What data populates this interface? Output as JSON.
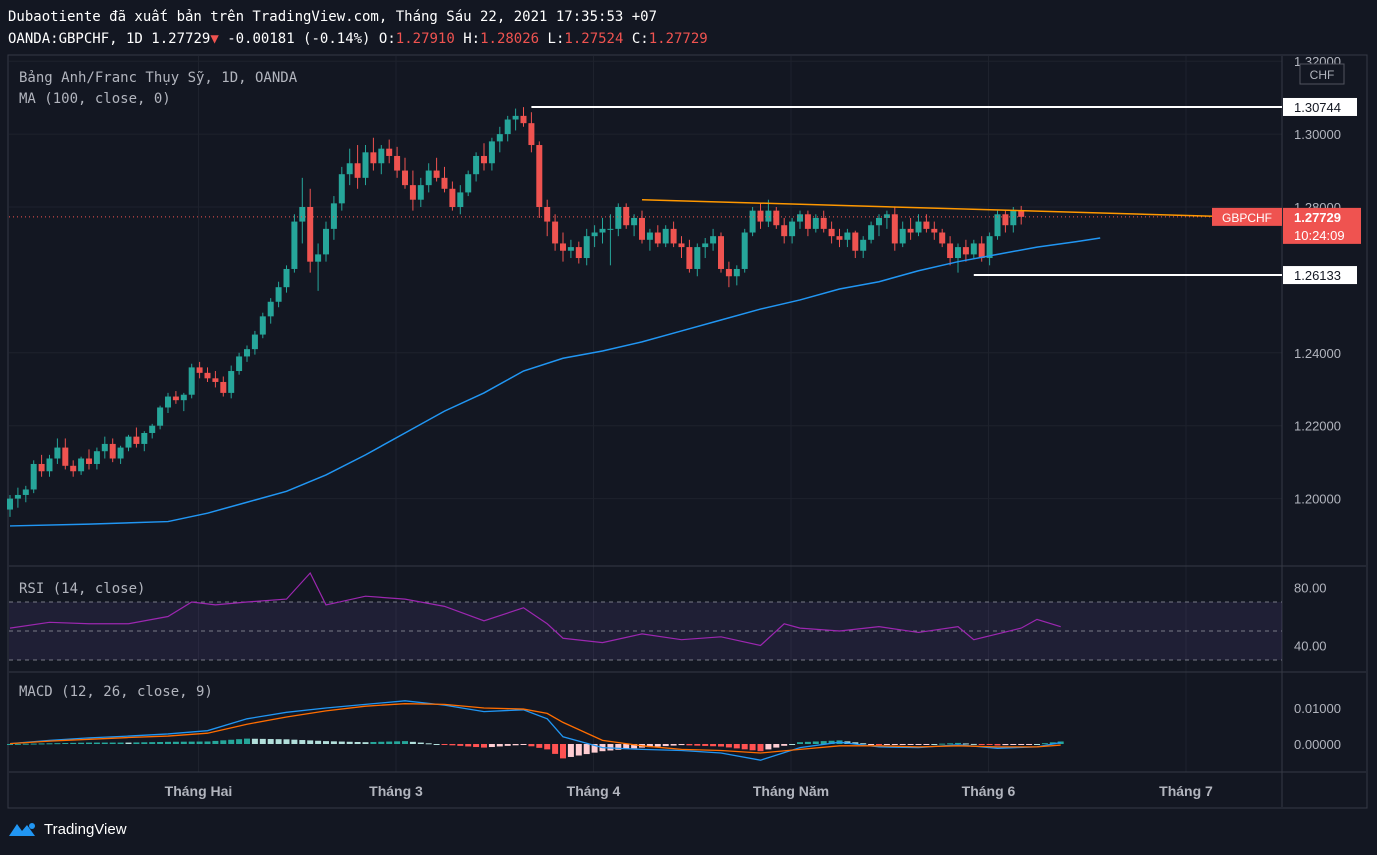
{
  "header": {
    "publish_line": "Dubaotiente đã xuất bản trên TradingView.com, Tháng Sáu 22, 2021 17:35:53 +07",
    "symbol": "OANDA:GBPCHF, 1D",
    "last": "1.27729",
    "arrow": "▼",
    "change": "-0.00181 (-0.14%)",
    "o_label": "O:",
    "o_value": "1.27910",
    "h_label": "H:",
    "h_value": "1.28026",
    "l_label": "L:",
    "l_value": "1.27524",
    "c_label": "C:",
    "c_value": "1.27729"
  },
  "main_pane": {
    "title": "Bảng Anh/Franc Thụy Sỹ, 1D, OANDA",
    "ma_label": "MA (100, close, 0)",
    "currency": "CHF",
    "symbol_tag": "GBPCHF",
    "price_tag": "1.27729",
    "countdown": "10:24:09",
    "level_high": "1.30744",
    "level_low": "1.26133"
  },
  "rsi_pane": {
    "title": "RSI (14, close)"
  },
  "macd_pane": {
    "title": "MACD (12, 26, close, 9)"
  },
  "footer": {
    "logo_text": "TradingView"
  },
  "colors": {
    "background": "#131722",
    "up": "#26a69a",
    "down": "#ef5350",
    "ma": "#2196f3",
    "rsi": "#9c27b0",
    "macd": "#2196f3",
    "signal": "#ff6d00",
    "trendline": "#ff9800",
    "level": "#ffffff"
  },
  "chart_data": [
    {
      "type": "candlestick",
      "title": "Bảng Anh/Franc Thụy Sỹ, 1D, OANDA",
      "ylim": [
        1.18,
        1.32
      ],
      "y_ticks": [
        "1.32000",
        "1.30000",
        "1.28000",
        "1.24000",
        "1.22000",
        "1.20000"
      ],
      "x_labels": [
        "Tháng Hai",
        "Tháng 3",
        "Tháng 4",
        "Tháng Năm",
        "Tháng 6",
        "Tháng 7"
      ],
      "x_label_days": [
        25,
        50,
        75,
        100,
        125,
        150
      ],
      "ohlc": [
        [
          1.197,
          1.201,
          1.195,
          1.2
        ],
        [
          1.2,
          1.203,
          1.1975,
          1.201
        ],
        [
          1.201,
          1.2035,
          1.199,
          1.2025
        ],
        [
          1.2025,
          1.2105,
          1.2015,
          1.2095
        ],
        [
          1.2095,
          1.212,
          1.206,
          1.2075
        ],
        [
          1.2075,
          1.212,
          1.206,
          1.211
        ],
        [
          1.211,
          1.2165,
          1.2095,
          1.214
        ],
        [
          1.214,
          1.2165,
          1.208,
          1.209
        ],
        [
          1.209,
          1.2105,
          1.206,
          1.2075
        ],
        [
          1.2075,
          1.2115,
          1.2065,
          1.211
        ],
        [
          1.211,
          1.2135,
          1.208,
          1.2095
        ],
        [
          1.2095,
          1.214,
          1.208,
          1.213
        ],
        [
          1.213,
          1.217,
          1.211,
          1.215
        ],
        [
          1.215,
          1.2165,
          1.21,
          1.211
        ],
        [
          1.211,
          1.2145,
          1.2095,
          1.214
        ],
        [
          1.214,
          1.2175,
          1.213,
          1.217
        ],
        [
          1.217,
          1.2195,
          1.214,
          1.215
        ],
        [
          1.215,
          1.2185,
          1.213,
          1.218
        ],
        [
          1.218,
          1.2205,
          1.2165,
          1.22
        ],
        [
          1.22,
          1.2255,
          1.219,
          1.225
        ],
        [
          1.225,
          1.229,
          1.2235,
          1.228
        ],
        [
          1.228,
          1.2295,
          1.226,
          1.227
        ],
        [
          1.227,
          1.229,
          1.224,
          1.2285
        ],
        [
          1.2285,
          1.237,
          1.2275,
          1.236
        ],
        [
          1.236,
          1.2375,
          1.233,
          1.2345
        ],
        [
          1.2345,
          1.236,
          1.232,
          1.233
        ],
        [
          1.233,
          1.235,
          1.2305,
          1.232
        ],
        [
          1.232,
          1.2335,
          1.228,
          1.229
        ],
        [
          1.229,
          1.2365,
          1.2275,
          1.235
        ],
        [
          1.235,
          1.24,
          1.234,
          1.239
        ],
        [
          1.239,
          1.242,
          1.2375,
          1.241
        ],
        [
          1.241,
          1.246,
          1.2395,
          1.245
        ],
        [
          1.245,
          1.251,
          1.244,
          1.25
        ],
        [
          1.25,
          1.255,
          1.248,
          1.254
        ],
        [
          1.254,
          1.2595,
          1.2525,
          1.258
        ],
        [
          1.258,
          1.264,
          1.2565,
          1.263
        ],
        [
          1.263,
          1.278,
          1.262,
          1.276
        ],
        [
          1.276,
          1.288,
          1.27,
          1.28
        ],
        [
          1.28,
          1.285,
          1.262,
          1.265
        ],
        [
          1.265,
          1.27,
          1.257,
          1.267
        ],
        [
          1.267,
          1.276,
          1.265,
          1.274
        ],
        [
          1.274,
          1.283,
          1.271,
          1.281
        ],
        [
          1.281,
          1.291,
          1.279,
          1.289
        ],
        [
          1.289,
          1.296,
          1.286,
          1.292
        ],
        [
          1.292,
          1.297,
          1.285,
          1.288
        ],
        [
          1.288,
          1.297,
          1.286,
          1.295
        ],
        [
          1.295,
          1.299,
          1.29,
          1.292
        ],
        [
          1.292,
          1.297,
          1.289,
          1.296
        ],
        [
          1.296,
          1.2985,
          1.292,
          1.294
        ],
        [
          1.294,
          1.2965,
          1.288,
          1.29
        ],
        [
          1.29,
          1.2935,
          1.285,
          1.286
        ],
        [
          1.286,
          1.29,
          1.279,
          1.282
        ],
        [
          1.282,
          1.288,
          1.28,
          1.286
        ],
        [
          1.286,
          1.292,
          1.284,
          1.29
        ],
        [
          1.29,
          1.2935,
          1.287,
          1.288
        ],
        [
          1.288,
          1.291,
          1.284,
          1.285
        ],
        [
          1.285,
          1.287,
          1.279,
          1.28
        ],
        [
          1.28,
          1.286,
          1.278,
          1.284
        ],
        [
          1.284,
          1.29,
          1.283,
          1.289
        ],
        [
          1.289,
          1.295,
          1.287,
          1.294
        ],
        [
          1.294,
          1.2975,
          1.29,
          1.292
        ],
        [
          1.292,
          1.299,
          1.29,
          1.298
        ],
        [
          1.298,
          1.302,
          1.295,
          1.3
        ],
        [
          1.3,
          1.305,
          1.298,
          1.304
        ],
        [
          1.304,
          1.307,
          1.301,
          1.305
        ],
        [
          1.305,
          1.3074,
          1.302,
          1.303
        ],
        [
          1.303,
          1.306,
          1.295,
          1.297
        ],
        [
          1.297,
          1.298,
          1.277,
          1.28
        ],
        [
          1.28,
          1.282,
          1.272,
          1.276
        ],
        [
          1.276,
          1.278,
          1.268,
          1.27
        ],
        [
          1.27,
          1.273,
          1.265,
          1.268
        ],
        [
          1.268,
          1.271,
          1.266,
          1.269
        ],
        [
          1.269,
          1.2705,
          1.2645,
          1.266
        ],
        [
          1.266,
          1.274,
          1.264,
          1.272
        ],
        [
          1.272,
          1.275,
          1.269,
          1.273
        ],
        [
          1.273,
          1.277,
          1.27,
          1.274
        ],
        [
          1.274,
          1.278,
          1.264,
          1.274
        ],
        [
          1.274,
          1.281,
          1.272,
          1.28
        ],
        [
          1.28,
          1.281,
          1.274,
          1.275
        ],
        [
          1.275,
          1.278,
          1.272,
          1.277
        ],
        [
          1.277,
          1.279,
          1.27,
          1.271
        ],
        [
          1.271,
          1.274,
          1.268,
          1.273
        ],
        [
          1.273,
          1.275,
          1.269,
          1.27
        ],
        [
          1.27,
          1.275,
          1.269,
          1.274
        ],
        [
          1.274,
          1.276,
          1.269,
          1.27
        ],
        [
          1.27,
          1.272,
          1.266,
          1.269
        ],
        [
          1.269,
          1.271,
          1.262,
          1.263
        ],
        [
          1.263,
          1.27,
          1.261,
          1.269
        ],
        [
          1.269,
          1.2715,
          1.266,
          1.27
        ],
        [
          1.27,
          1.274,
          1.268,
          1.272
        ],
        [
          1.272,
          1.273,
          1.262,
          1.263
        ],
        [
          1.263,
          1.265,
          1.258,
          1.261
        ],
        [
          1.261,
          1.264,
          1.2585,
          1.263
        ],
        [
          1.263,
          1.274,
          1.262,
          1.273
        ],
        [
          1.273,
          1.28,
          1.272,
          1.279
        ],
        [
          1.279,
          1.281,
          1.274,
          1.276
        ],
        [
          1.276,
          1.282,
          1.2745,
          1.279
        ],
        [
          1.279,
          1.28,
          1.274,
          1.275
        ],
        [
          1.275,
          1.277,
          1.27,
          1.272
        ],
        [
          1.272,
          1.277,
          1.27,
          1.276
        ],
        [
          1.276,
          1.279,
          1.274,
          1.278
        ],
        [
          1.278,
          1.279,
          1.272,
          1.274
        ],
        [
          1.274,
          1.278,
          1.273,
          1.277
        ],
        [
          1.277,
          1.279,
          1.273,
          1.274
        ],
        [
          1.274,
          1.276,
          1.27,
          1.272
        ],
        [
          1.272,
          1.274,
          1.269,
          1.271
        ],
        [
          1.271,
          1.274,
          1.269,
          1.273
        ],
        [
          1.273,
          1.2735,
          1.266,
          1.268
        ],
        [
          1.268,
          1.272,
          1.266,
          1.271
        ],
        [
          1.271,
          1.276,
          1.27,
          1.275
        ],
        [
          1.275,
          1.278,
          1.272,
          1.277
        ],
        [
          1.277,
          1.279,
          1.274,
          1.278
        ],
        [
          1.278,
          1.28,
          1.268,
          1.27
        ],
        [
          1.27,
          1.276,
          1.269,
          1.274
        ],
        [
          1.274,
          1.277,
          1.271,
          1.273
        ],
        [
          1.273,
          1.278,
          1.272,
          1.276
        ],
        [
          1.276,
          1.278,
          1.273,
          1.274
        ],
        [
          1.274,
          1.276,
          1.271,
          1.273
        ],
        [
          1.273,
          1.274,
          1.269,
          1.27
        ],
        [
          1.27,
          1.272,
          1.264,
          1.266
        ],
        [
          1.266,
          1.27,
          1.262,
          1.269
        ],
        [
          1.269,
          1.271,
          1.265,
          1.267
        ],
        [
          1.267,
          1.271,
          1.266,
          1.27
        ],
        [
          1.27,
          1.272,
          1.265,
          1.266
        ],
        [
          1.266,
          1.273,
          1.264,
          1.272
        ],
        [
          1.272,
          1.279,
          1.271,
          1.278
        ],
        [
          1.278,
          1.279,
          1.273,
          1.275
        ],
        [
          1.275,
          1.28,
          1.273,
          1.279
        ],
        [
          1.2791,
          1.2803,
          1.2752,
          1.2773
        ]
      ],
      "ma100": [
        [
          0,
          1.1925
        ],
        [
          10,
          1.193
        ],
        [
          20,
          1.1937
        ],
        [
          25,
          1.196
        ],
        [
          30,
          1.199
        ],
        [
          35,
          1.202
        ],
        [
          40,
          1.2065
        ],
        [
          45,
          1.212
        ],
        [
          50,
          1.218
        ],
        [
          55,
          1.224
        ],
        [
          60,
          1.229
        ],
        [
          65,
          1.235
        ],
        [
          70,
          1.2385
        ],
        [
          75,
          1.2405
        ],
        [
          80,
          1.243
        ],
        [
          85,
          1.246
        ],
        [
          90,
          1.249
        ],
        [
          95,
          1.252
        ],
        [
          100,
          1.2545
        ],
        [
          105,
          1.2575
        ],
        [
          110,
          1.2595
        ],
        [
          115,
          1.2625
        ],
        [
          120,
          1.265
        ],
        [
          125,
          1.267
        ],
        [
          130,
          1.269
        ],
        [
          135,
          1.2705
        ],
        [
          138,
          1.2715
        ]
      ],
      "horizontal_levels": [
        {
          "price": 1.30744,
          "from_day": 66
        },
        {
          "price": 1.26133,
          "from_day": 122
        }
      ],
      "trendline": {
        "x1": 80,
        "y1": 1.282,
        "x2": 139,
        "y2": 1.2783
      },
      "last_price": 1.27729
    },
    {
      "type": "line",
      "title": "RSI (14, close)",
      "ylim": [
        25,
        95
      ],
      "y_ticks": [
        "80.00",
        "40.00"
      ],
      "levels": [
        70,
        50,
        30
      ],
      "values": [
        [
          0,
          52
        ],
        [
          5,
          56
        ],
        [
          10,
          55
        ],
        [
          15,
          55
        ],
        [
          20,
          60
        ],
        [
          23,
          70
        ],
        [
          26,
          68
        ],
        [
          30,
          70
        ],
        [
          35,
          72
        ],
        [
          38,
          90
        ],
        [
          40,
          68
        ],
        [
          45,
          74
        ],
        [
          50,
          72
        ],
        [
          55,
          67
        ],
        [
          60,
          57
        ],
        [
          65,
          66
        ],
        [
          68,
          55
        ],
        [
          70,
          45
        ],
        [
          75,
          42
        ],
        [
          80,
          48
        ],
        [
          85,
          44
        ],
        [
          90,
          46
        ],
        [
          95,
          40
        ],
        [
          98,
          55
        ],
        [
          100,
          52
        ],
        [
          105,
          50
        ],
        [
          110,
          53
        ],
        [
          115,
          49
        ],
        [
          120,
          53
        ],
        [
          122,
          44
        ],
        [
          125,
          48
        ],
        [
          128,
          52
        ],
        [
          130,
          58
        ],
        [
          133,
          53
        ]
      ]
    },
    {
      "type": "line",
      "title": "MACD (12, 26, close, 9)",
      "ylim": [
        -0.008,
        0.018
      ],
      "y_ticks": [
        "0.01000",
        "0.00000"
      ],
      "macd": [
        [
          0,
          0.0001
        ],
        [
          5,
          0.001
        ],
        [
          10,
          0.0017
        ],
        [
          15,
          0.0022
        ],
        [
          20,
          0.0028
        ],
        [
          25,
          0.0037
        ],
        [
          30,
          0.007
        ],
        [
          35,
          0.0088
        ],
        [
          40,
          0.01
        ],
        [
          45,
          0.011
        ],
        [
          50,
          0.012
        ],
        [
          55,
          0.0108
        ],
        [
          60,
          0.009
        ],
        [
          65,
          0.0095
        ],
        [
          68,
          0.007
        ],
        [
          70,
          0.002
        ],
        [
          75,
          -0.001
        ],
        [
          80,
          -0.0015
        ],
        [
          85,
          -0.0018
        ],
        [
          90,
          -0.0025
        ],
        [
          95,
          -0.0045
        ],
        [
          100,
          -0.001
        ],
        [
          105,
          0.0005
        ],
        [
          110,
          -0.0008
        ],
        [
          115,
          -0.001
        ],
        [
          120,
          -0.0002
        ],
        [
          125,
          -0.0012
        ],
        [
          130,
          -0.0008
        ],
        [
          133,
          0.0004
        ]
      ],
      "signal": [
        [
          0,
          0.0001
        ],
        [
          5,
          0.0008
        ],
        [
          10,
          0.0013
        ],
        [
          15,
          0.0018
        ],
        [
          20,
          0.0022
        ],
        [
          25,
          0.003
        ],
        [
          30,
          0.0055
        ],
        [
          35,
          0.0075
        ],
        [
          40,
          0.0092
        ],
        [
          45,
          0.0105
        ],
        [
          50,
          0.0112
        ],
        [
          55,
          0.011
        ],
        [
          60,
          0.01
        ],
        [
          65,
          0.0097
        ],
        [
          68,
          0.0085
        ],
        [
          70,
          0.006
        ],
        [
          75,
          0.001
        ],
        [
          80,
          -0.0005
        ],
        [
          85,
          -0.0015
        ],
        [
          90,
          -0.0018
        ],
        [
          95,
          -0.0025
        ],
        [
          100,
          -0.0015
        ],
        [
          105,
          -0.0005
        ],
        [
          110,
          -0.0005
        ],
        [
          115,
          -0.0008
        ],
        [
          120,
          -0.0005
        ],
        [
          125,
          -0.0008
        ],
        [
          130,
          -0.0008
        ],
        [
          133,
          -0.0003
        ]
      ]
    }
  ]
}
